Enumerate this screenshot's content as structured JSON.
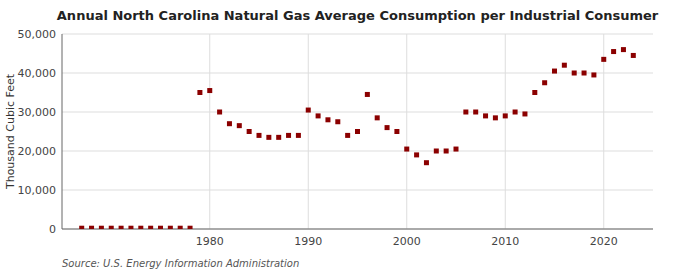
{
  "chart_data": {
    "type": "scatter",
    "title": "Annual North Carolina Natural Gas Average Consumption per Industrial Consumer",
    "ylabel": "Thousand Cubic Feet",
    "annotations": [
      "Source: U.S. Energy Information Administration"
    ],
    "x": [
      1967,
      1968,
      1969,
      1970,
      1971,
      1972,
      1973,
      1974,
      1975,
      1976,
      1977,
      1978,
      1979,
      1980,
      1981,
      1982,
      1983,
      1984,
      1985,
      1986,
      1987,
      1988,
      1989,
      1990,
      1991,
      1992,
      1993,
      1994,
      1995,
      1996,
      1997,
      1998,
      1999,
      2000,
      2001,
      2002,
      2003,
      2004,
      2005,
      2006,
      2007,
      2008,
      2009,
      2010,
      2011,
      2012,
      2013,
      2014,
      2015,
      2016,
      2017,
      2018,
      2019,
      2020,
      2021,
      2022,
      2023
    ],
    "values": [
      200,
      200,
      200,
      200,
      200,
      200,
      200,
      200,
      200,
      200,
      200,
      200,
      35000,
      35500,
      30000,
      27000,
      26500,
      25000,
      24000,
      23500,
      23500,
      24000,
      24000,
      30500,
      29000,
      28000,
      27500,
      24000,
      25000,
      34500,
      28500,
      26000,
      25000,
      20500,
      19000,
      17000,
      20000,
      20000,
      20500,
      30000,
      30000,
      29000,
      28500,
      29000,
      30000,
      29500,
      35000,
      37500,
      40500,
      42000,
      40000,
      40000,
      39500,
      43500,
      45500,
      46000,
      44500
    ],
    "color": "#8b0000",
    "marker": "square",
    "xlim": [
      1965,
      2025
    ],
    "ylim": [
      0,
      50000
    ],
    "xticks": [
      1980,
      1990,
      2000,
      2010,
      2020
    ],
    "yticks": [
      0,
      {
        "value": 10000,
        "label": "10,000"
      },
      {
        "value": 20000,
        "label": "20,000"
      },
      {
        "value": 30000,
        "label": "30,000"
      },
      {
        "value": 40000,
        "label": "40,000"
      },
      {
        "value": 50000,
        "label": "50,000"
      }
    ],
    "grid": true
  }
}
